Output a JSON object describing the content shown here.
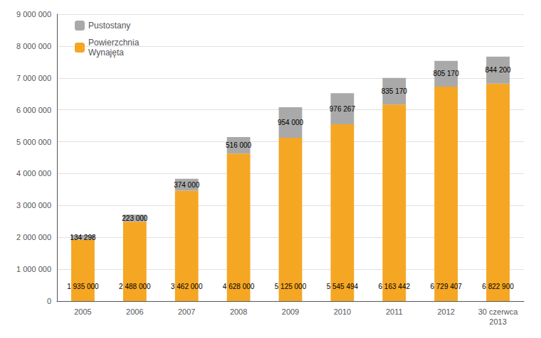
{
  "chart_data": {
    "type": "bar",
    "stacked": true,
    "categories": [
      "2005",
      "2006",
      "2007",
      "2008",
      "2009",
      "2010",
      "2011",
      "2012",
      "30 czerwca\n2013"
    ],
    "series": [
      {
        "name": "Powierzchnia\nWynajęta",
        "color": "#F5A623",
        "values": [
          1935000,
          2488000,
          3462000,
          4628000,
          5125000,
          5545494,
          6163442,
          6729407,
          6822900
        ],
        "value_labels": [
          "1 935 000",
          "2 488 000",
          "3 462 000",
          "4 628 000",
          "5 125 000",
          "5 545 494",
          "6 163 442",
          "6 729 407",
          "6 822 900"
        ]
      },
      {
        "name": "Pustostany",
        "color": "#A9A9A9",
        "values": [
          134298,
          223000,
          374000,
          516000,
          954000,
          976267,
          835170,
          805170,
          844200
        ],
        "value_labels": [
          "134 298",
          "223 000",
          "374 000",
          "516 000",
          "954 000",
          "976 267",
          "835 170",
          "805 170",
          "844 200"
        ]
      }
    ],
    "ylim": [
      0,
      9000000
    ],
    "yticks": [
      0,
      {
        "value": 1000000,
        "label": "1 000 000"
      },
      {
        "value": 2000000,
        "label": "2 000 000"
      },
      {
        "value": 3000000,
        "label": "3 000 000"
      },
      {
        "value": 4000000,
        "label": "4 000 000"
      },
      {
        "value": 5000000,
        "label": "5 000 000"
      },
      {
        "value": 6000000,
        "label": "6 000 000"
      },
      {
        "value": 7000000,
        "label": "7 000 000"
      },
      {
        "value": 8000000,
        "label": "8 000 000"
      },
      {
        "value": 9000000,
        "label": "9 000 000"
      }
    ],
    "grid": true,
    "legend": "upper left",
    "data_labels": true
  }
}
